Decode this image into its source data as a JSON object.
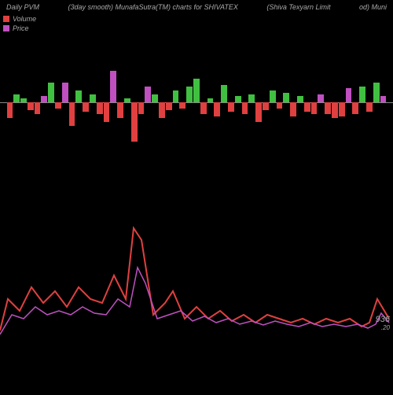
{
  "header": {
    "left": "Daily PVM",
    "center_left": "(3day smooth) MunafaSutra(TM) charts for SHIVATEX",
    "center_right": "(Shiva Texyarn Limit",
    "right": "od) Muni"
  },
  "legend": {
    "volume": {
      "label": "Volume",
      "color": "#e04040"
    },
    "price": {
      "label": "Price",
      "color": "#c050c0"
    }
  },
  "colors": {
    "background": "#000000",
    "baseline": "#888888",
    "text": "#aaaaaa",
    "up_bar": "#40c040",
    "down_bar": "#e04040",
    "magenta_bar": "#c050c0",
    "line1": "#e04040",
    "line2": "#c050c0"
  },
  "bars": [
    {
      "v": -20,
      "c": "down"
    },
    {
      "v": 10,
      "c": "up"
    },
    {
      "v": 5,
      "c": "up"
    },
    {
      "v": -10,
      "c": "down"
    },
    {
      "v": -15,
      "c": "down"
    },
    {
      "v": 8,
      "c": "mag"
    },
    {
      "v": 25,
      "c": "up"
    },
    {
      "v": -8,
      "c": "down"
    },
    {
      "v": 25,
      "c": "mag"
    },
    {
      "v": -30,
      "c": "down"
    },
    {
      "v": 15,
      "c": "up"
    },
    {
      "v": -12,
      "c": "down"
    },
    {
      "v": 10,
      "c": "up"
    },
    {
      "v": -15,
      "c": "down"
    },
    {
      "v": -25,
      "c": "down"
    },
    {
      "v": 40,
      "c": "mag"
    },
    {
      "v": -20,
      "c": "down"
    },
    {
      "v": 5,
      "c": "up"
    },
    {
      "v": -50,
      "c": "down"
    },
    {
      "v": -15,
      "c": "down"
    },
    {
      "v": 20,
      "c": "mag"
    },
    {
      "v": 10,
      "c": "up"
    },
    {
      "v": -20,
      "c": "down"
    },
    {
      "v": -10,
      "c": "down"
    },
    {
      "v": 15,
      "c": "up"
    },
    {
      "v": -8,
      "c": "down"
    },
    {
      "v": 20,
      "c": "up"
    },
    {
      "v": 30,
      "c": "up"
    },
    {
      "v": -15,
      "c": "down"
    },
    {
      "v": 5,
      "c": "up"
    },
    {
      "v": -18,
      "c": "down"
    },
    {
      "v": 22,
      "c": "up"
    },
    {
      "v": -12,
      "c": "down"
    },
    {
      "v": 8,
      "c": "up"
    },
    {
      "v": -15,
      "c": "down"
    },
    {
      "v": 10,
      "c": "up"
    },
    {
      "v": -25,
      "c": "down"
    },
    {
      "v": -10,
      "c": "down"
    },
    {
      "v": 15,
      "c": "up"
    },
    {
      "v": -8,
      "c": "down"
    },
    {
      "v": 12,
      "c": "up"
    },
    {
      "v": -18,
      "c": "down"
    },
    {
      "v": 8,
      "c": "up"
    },
    {
      "v": -12,
      "c": "down"
    },
    {
      "v": -15,
      "c": "down"
    },
    {
      "v": 10,
      "c": "mag"
    },
    {
      "v": -15,
      "c": "down"
    },
    {
      "v": -20,
      "c": "down"
    },
    {
      "v": -18,
      "c": "down"
    },
    {
      "v": 18,
      "c": "mag"
    },
    {
      "v": -15,
      "c": "down"
    },
    {
      "v": 20,
      "c": "up"
    },
    {
      "v": -12,
      "c": "down"
    },
    {
      "v": 25,
      "c": "up"
    },
    {
      "v": 8,
      "c": "mag"
    }
  ],
  "line1_points": [
    [
      0,
      170
    ],
    [
      10,
      130
    ],
    [
      25,
      145
    ],
    [
      40,
      115
    ],
    [
      55,
      135
    ],
    [
      70,
      120
    ],
    [
      85,
      140
    ],
    [
      100,
      115
    ],
    [
      115,
      130
    ],
    [
      130,
      135
    ],
    [
      145,
      100
    ],
    [
      160,
      130
    ],
    [
      170,
      40
    ],
    [
      180,
      55
    ],
    [
      195,
      150
    ],
    [
      210,
      135
    ],
    [
      220,
      120
    ],
    [
      235,
      155
    ],
    [
      250,
      140
    ],
    [
      265,
      155
    ],
    [
      280,
      145
    ],
    [
      295,
      158
    ],
    [
      310,
      150
    ],
    [
      325,
      160
    ],
    [
      340,
      150
    ],
    [
      355,
      155
    ],
    [
      370,
      160
    ],
    [
      385,
      155
    ],
    [
      400,
      162
    ],
    [
      415,
      155
    ],
    [
      430,
      160
    ],
    [
      445,
      155
    ],
    [
      460,
      165
    ],
    [
      470,
      160
    ],
    [
      480,
      130
    ],
    [
      495,
      155
    ]
  ],
  "line2_points": [
    [
      0,
      175
    ],
    [
      15,
      150
    ],
    [
      30,
      155
    ],
    [
      45,
      140
    ],
    [
      60,
      150
    ],
    [
      75,
      145
    ],
    [
      90,
      150
    ],
    [
      105,
      140
    ],
    [
      120,
      148
    ],
    [
      135,
      150
    ],
    [
      150,
      130
    ],
    [
      165,
      140
    ],
    [
      175,
      90
    ],
    [
      185,
      110
    ],
    [
      200,
      155
    ],
    [
      215,
      150
    ],
    [
      230,
      145
    ],
    [
      245,
      158
    ],
    [
      260,
      152
    ],
    [
      275,
      160
    ],
    [
      290,
      155
    ],
    [
      305,
      162
    ],
    [
      320,
      158
    ],
    [
      335,
      163
    ],
    [
      350,
      158
    ],
    [
      365,
      162
    ],
    [
      380,
      165
    ],
    [
      395,
      160
    ],
    [
      410,
      165
    ],
    [
      425,
      162
    ],
    [
      440,
      165
    ],
    [
      455,
      162
    ],
    [
      468,
      167
    ],
    [
      478,
      162
    ],
    [
      485,
      148
    ],
    [
      495,
      160
    ]
  ],
  "price_label": {
    "main": "936",
    "sub": ".20"
  }
}
